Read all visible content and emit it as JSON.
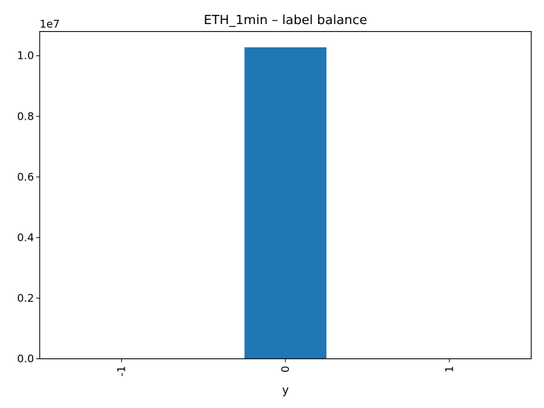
{
  "chart_data": {
    "type": "bar",
    "title": "ETH_1min – label balance",
    "xlabel": "y",
    "ylabel": "",
    "categories": [
      "-1",
      "0",
      "1"
    ],
    "values": [
      0,
      10280000,
      0
    ],
    "ylim": [
      0,
      10800000
    ],
    "yticks": [
      0,
      2000000,
      4000000,
      6000000,
      8000000,
      10000000
    ],
    "ytick_labels": [
      "0.0",
      "0.2",
      "0.4",
      "0.6",
      "0.8",
      "1.0"
    ],
    "y_offset_label": "1e7",
    "xtick_rotation": "vertical",
    "bar_color": "#1f77b4",
    "grid": false,
    "legend": "none"
  }
}
